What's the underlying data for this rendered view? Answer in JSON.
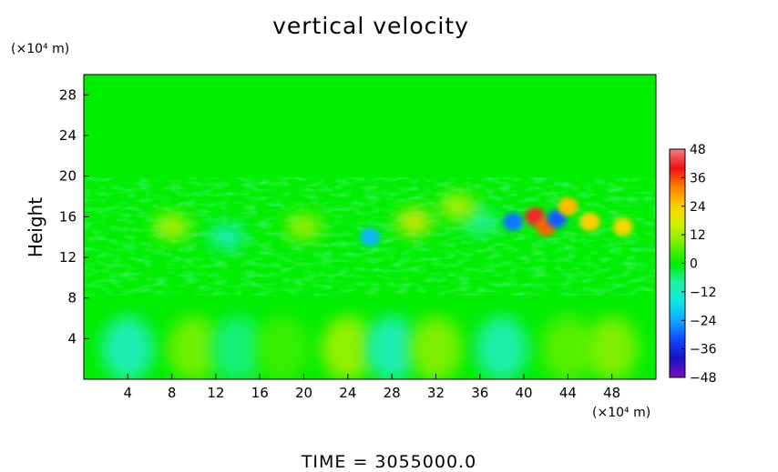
{
  "chart_data": {
    "type": "heatmap",
    "title": "vertical velocity",
    "ylabel": "Height",
    "y_unit_label": "(×10⁴ m)",
    "x_unit_label": "(×10⁴ m)",
    "footer": "TIME  =  3055000.0",
    "xlim": [
      0,
      52
    ],
    "ylim": [
      0,
      30
    ],
    "x_ticks": [
      4,
      8,
      12,
      16,
      20,
      24,
      28,
      32,
      36,
      40,
      44,
      48
    ],
    "x_tick_labels": [
      "4",
      "8",
      "12",
      "16",
      "20",
      "24",
      "28",
      "32",
      "36",
      "40",
      "44",
      "48"
    ],
    "y_ticks": [
      4,
      8,
      12,
      16,
      20,
      24,
      28
    ],
    "y_tick_labels": [
      "4",
      "8",
      "12",
      "16",
      "20",
      "24",
      "28"
    ],
    "colorbar": {
      "range": [
        -48,
        48
      ],
      "ticks": [
        48,
        36,
        24,
        12,
        0,
        -12,
        -24,
        -36,
        -48
      ],
      "tick_labels": [
        "48",
        "36",
        "24",
        "12",
        "0",
        "−12",
        "−24",
        "−36",
        "−48"
      ],
      "stops": [
        {
          "value": -48,
          "color": "#7a10b8"
        },
        {
          "value": -40,
          "color": "#1a10c8"
        },
        {
          "value": -32,
          "color": "#1048ff"
        },
        {
          "value": -24,
          "color": "#10a8ff"
        },
        {
          "value": -16,
          "color": "#10e8e0"
        },
        {
          "value": -8,
          "color": "#20f0a0"
        },
        {
          "value": 0,
          "color": "#00ee00"
        },
        {
          "value": 8,
          "color": "#70f000"
        },
        {
          "value": 16,
          "color": "#d0f000"
        },
        {
          "value": 24,
          "color": "#ffd000"
        },
        {
          "value": 32,
          "color": "#ff8000"
        },
        {
          "value": 40,
          "color": "#ee1010"
        },
        {
          "value": 48,
          "color": "#f08080"
        }
      ]
    },
    "background_value": 0,
    "features": [
      {
        "x": 4,
        "y": 3,
        "value": -10
      },
      {
        "x": 10,
        "y": 3,
        "value": 8
      },
      {
        "x": 14,
        "y": 3,
        "value": -6
      },
      {
        "x": 18,
        "y": 3,
        "value": 4
      },
      {
        "x": 24,
        "y": 3,
        "value": 11
      },
      {
        "x": 28,
        "y": 3,
        "value": -10
      },
      {
        "x": 32,
        "y": 3,
        "value": 9
      },
      {
        "x": 38,
        "y": 3,
        "value": -9
      },
      {
        "x": 44,
        "y": 3,
        "value": 6
      },
      {
        "x": 48,
        "y": 3,
        "value": 9
      },
      {
        "x": 26,
        "y": 14,
        "value": -22
      },
      {
        "x": 30,
        "y": 15.5,
        "value": 18
      },
      {
        "x": 36,
        "y": 15.5,
        "value": -8
      },
      {
        "x": 39,
        "y": 15.5,
        "value": -28
      },
      {
        "x": 41,
        "y": 16,
        "value": 42
      },
      {
        "x": 42,
        "y": 15,
        "value": 34
      },
      {
        "x": 43,
        "y": 15.8,
        "value": -30
      },
      {
        "x": 44,
        "y": 17,
        "value": 26
      },
      {
        "x": 46,
        "y": 15.5,
        "value": 24
      },
      {
        "x": 49,
        "y": 15,
        "value": 22
      },
      {
        "x": 8,
        "y": 15,
        "value": 14
      },
      {
        "x": 13,
        "y": 14,
        "value": -12
      },
      {
        "x": 20,
        "y": 15,
        "value": 12
      },
      {
        "x": 34,
        "y": 17,
        "value": 14
      }
    ]
  }
}
